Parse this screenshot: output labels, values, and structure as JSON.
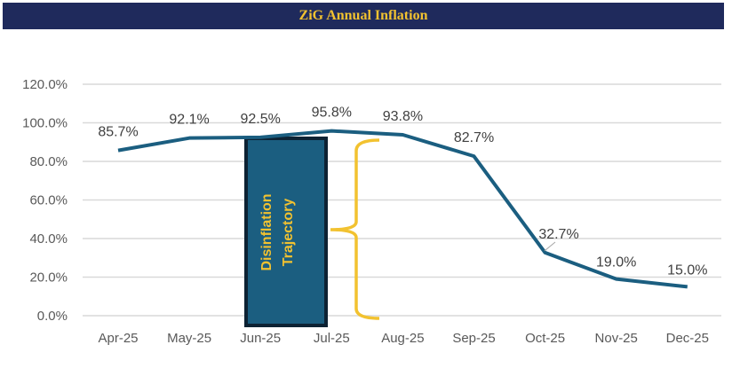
{
  "chart_data": {
    "type": "line",
    "title": "ZiG Annual Inflation",
    "categories": [
      "Apr-25",
      "May-25",
      "Jun-25",
      "Jul-25",
      "Aug-25",
      "Sep-25",
      "Oct-25",
      "Nov-25",
      "Dec-25"
    ],
    "series": [
      {
        "name": "ZiG Annual Inflation",
        "values": [
          85.7,
          92.1,
          92.5,
          95.8,
          93.8,
          82.7,
          32.7,
          19.0,
          15.0
        ]
      }
    ],
    "data_labels": [
      "85.7%",
      "92.1%",
      "92.5%",
      "95.8%",
      "93.8%",
      "82.7%",
      "32.7%",
      "19.0%",
      "15.0%"
    ],
    "yticks": [
      "0.0%",
      "20.0%",
      "40.0%",
      "60.0%",
      "80.0%",
      "100.0%",
      "120.0%"
    ],
    "ylim": [
      0,
      120
    ],
    "grid": true,
    "annotation": {
      "line1": "Disinflation",
      "line2": "Trajectory"
    },
    "colors": {
      "line": "#1b5e80",
      "header": "#1f2a5c",
      "accent": "#f2c230",
      "box": "#1b5e80",
      "box_border": "#0d2233"
    }
  }
}
